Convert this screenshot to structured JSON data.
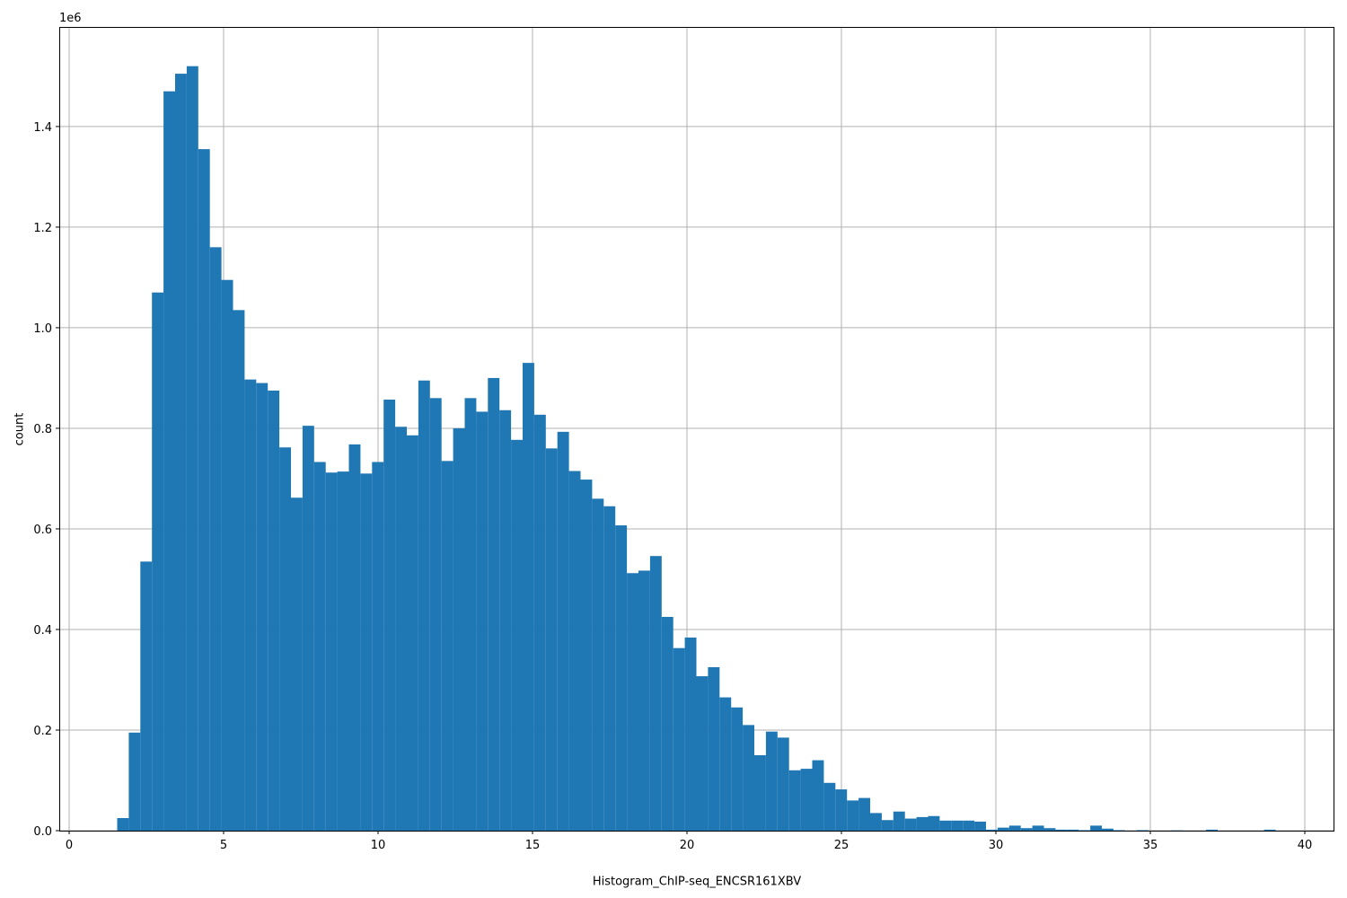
{
  "chart_data": {
    "type": "histogram",
    "x_label": "Histogram_ChIP-seq_ENCSR161XBV",
    "y_label": "count",
    "y_offset_label": "1e6",
    "color": "#1f77b4",
    "grid": true,
    "bins": [
      1.555,
      1.93,
      2.305,
      2.68,
      3.055,
      3.43,
      3.805,
      4.18,
      4.555,
      4.93,
      5.305,
      5.68,
      6.055,
      6.43,
      6.805,
      7.18,
      7.555,
      7.93,
      8.305,
      8.68,
      9.055,
      9.43,
      9.805,
      10.18,
      10.555,
      10.93,
      11.305,
      11.68,
      12.055,
      12.43,
      12.805,
      13.18,
      13.555,
      13.93,
      14.305,
      14.68,
      15.055,
      15.43,
      15.805,
      16.18,
      16.555,
      16.93,
      17.305,
      17.68,
      18.055,
      18.43,
      18.805,
      19.18,
      19.555,
      19.93,
      20.305,
      20.68,
      21.055,
      21.43,
      21.805,
      22.18,
      22.555,
      22.93,
      23.305,
      23.68,
      24.055,
      24.43,
      24.805,
      25.18,
      25.555,
      25.93,
      26.305,
      26.68,
      27.055,
      27.43,
      27.805,
      28.18,
      28.555,
      28.93,
      29.305,
      29.68,
      30.055,
      30.43,
      30.805,
      31.18,
      31.555,
      31.93,
      32.305,
      32.68,
      33.055,
      33.43,
      33.805,
      34.18,
      34.555,
      34.93,
      35.305,
      35.68,
      36.055,
      36.43,
      36.805,
      37.18,
      37.555,
      37.93,
      38.305,
      38.68,
      39.055
    ],
    "counts": [
      25000,
      195000,
      535000,
      1070000,
      1470000,
      1505000,
      1520000,
      1355000,
      1160000,
      1095000,
      1035000,
      897000,
      890000,
      875000,
      762000,
      662000,
      805000,
      733000,
      712000,
      714000,
      768000,
      710000,
      733000,
      857000,
      803000,
      786000,
      895000,
      860000,
      735000,
      800000,
      860000,
      833000,
      900000,
      836000,
      777000,
      930000,
      827000,
      760000,
      793000,
      715000,
      698000,
      660000,
      645000,
      607000,
      512000,
      517000,
      546000,
      425000,
      363000,
      384000,
      307000,
      325000,
      265000,
      245000,
      210000,
      150000,
      197000,
      185000,
      120000,
      123000,
      140000,
      95000,
      82000,
      60000,
      65000,
      35000,
      21000,
      38000,
      24000,
      27000,
      29000,
      20000,
      20000,
      20000,
      18000,
      2000,
      6000,
      10000,
      5000,
      10000,
      5000,
      2000,
      2000,
      1000,
      10000,
      4000,
      1000,
      0,
      1000,
      0,
      0,
      500,
      0,
      0,
      2000,
      0,
      0,
      0,
      0,
      2000
    ],
    "xlim": [
      -0.32,
      40.93
    ],
    "ylim": [
      0,
      1598000
    ],
    "xticks": [
      0,
      5,
      10,
      15,
      20,
      25,
      30,
      35,
      40
    ],
    "yticks": [
      {
        "value": 0,
        "label": "0.0"
      },
      {
        "value": 200000,
        "label": "0.2"
      },
      {
        "value": 400000,
        "label": "0.4"
      },
      {
        "value": 600000,
        "label": "0.6"
      },
      {
        "value": 800000,
        "label": "0.8"
      },
      {
        "value": 1000000,
        "label": "1.0"
      },
      {
        "value": 1200000,
        "label": "1.2"
      },
      {
        "value": 1400000,
        "label": "1.4"
      }
    ]
  }
}
